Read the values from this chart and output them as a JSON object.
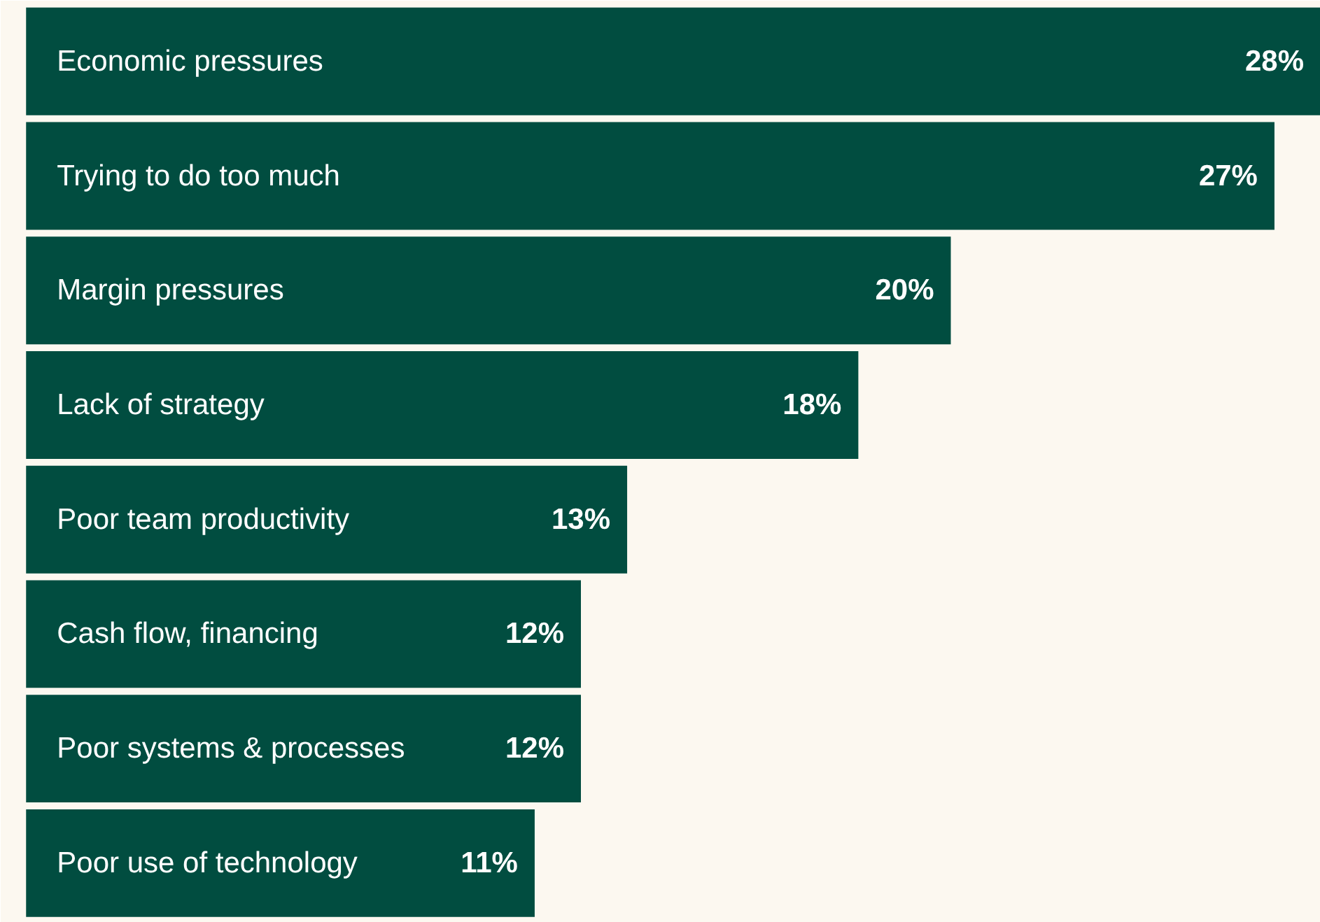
{
  "chart_data": {
    "type": "bar",
    "orientation": "horizontal",
    "categories": [
      "Economic pressures",
      "Trying to do too much",
      "Margin pressures",
      "Lack of strategy",
      "Poor team productivity",
      "Cash flow, financing",
      "Poor systems & processes",
      "Poor use of technology"
    ],
    "values": [
      28,
      27,
      20,
      18,
      13,
      12,
      12,
      11
    ],
    "value_labels": [
      "28%",
      "27%",
      "20%",
      "18%",
      "13%",
      "12%",
      "12%",
      "11%"
    ],
    "color": "#014d40"
  }
}
